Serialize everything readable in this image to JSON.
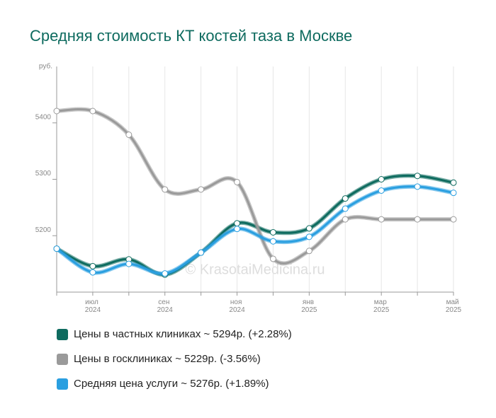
{
  "chart_data": {
    "type": "line",
    "title": "Средняя стоимость КТ костей таза в Москве",
    "y_label": "руб.",
    "watermark": "© KrasotaiMedicina.ru",
    "categories": [
      null,
      "июл 2024",
      null,
      "сен 2024",
      null,
      "ноя 2024",
      null,
      "янв 2025",
      null,
      "мар 2025",
      null,
      "май 2025"
    ],
    "ylim": [
      5100,
      5500
    ],
    "yticks": [
      5200,
      5300,
      5400
    ],
    "grid": true,
    "legend": "bottom",
    "series": [
      {
        "name": "Цены в частных клиниках ~ 5294р. (+2.28%)",
        "color": "#0e6b5f",
        "values": [
          5177,
          5146,
          5158,
          5131,
          5170,
          5222,
          5206,
          5213,
          5266,
          5300,
          5306,
          5294
        ]
      },
      {
        "name": "Цены в госклиниках ~ 5229р. (-3.56%)",
        "color": "#9a9a9a",
        "values": [
          5421,
          5421,
          5379,
          5282,
          5282,
          5295,
          5159,
          5173,
          5229,
          5229,
          5229,
          5229
        ]
      },
      {
        "name": "Средняя цена услуги ~ 5276р. (+1.89%)",
        "color": "#2a9fe0",
        "values": [
          5177,
          5135,
          5150,
          5133,
          5170,
          5212,
          5190,
          5198,
          5248,
          5280,
          5287,
          5276
        ]
      }
    ]
  }
}
